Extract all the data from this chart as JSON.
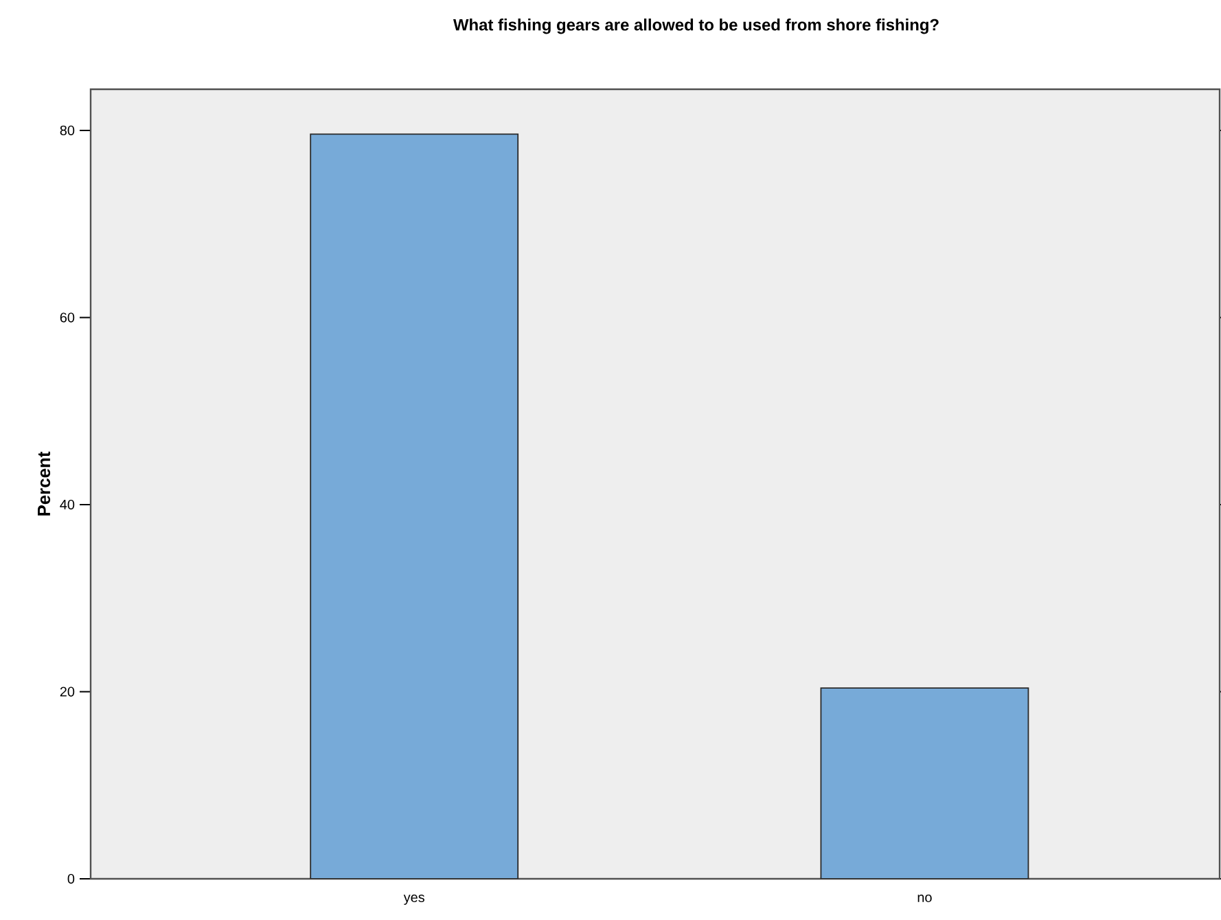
{
  "chart_data": {
    "type": "bar",
    "title": "What fishing gears are allowed to be used from shore fishing?",
    "ylabel": "Percent",
    "categories": [
      "yes",
      "no"
    ],
    "values": [
      79.6,
      20.4
    ],
    "color": "#77aad8",
    "ylim": [
      0,
      84.4
    ],
    "yticks": [
      0,
      20,
      40,
      60,
      80
    ],
    "grid": false,
    "legend": false
  }
}
